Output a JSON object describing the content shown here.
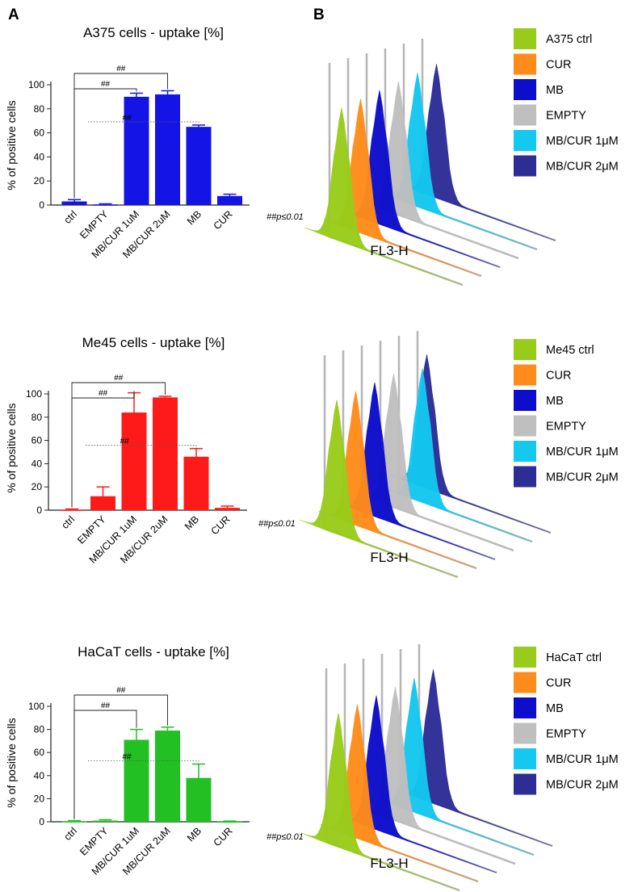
{
  "panel_labels": {
    "a": "A",
    "b": "B"
  },
  "chart_data": [
    {
      "type": "bar",
      "title": "A375 cells - uptake [%]",
      "ylabel": "% of positive cells",
      "xlabel": "",
      "ylim": [
        0,
        100
      ],
      "yticks": [
        0,
        20,
        40,
        60,
        80,
        100
      ],
      "categories": [
        "ctrl",
        "EMPTY",
        "MB/CUR 1uM",
        "MB/CUR 2uM",
        "MB",
        "CUR"
      ],
      "values": [
        3,
        0.5,
        90,
        92,
        65,
        7.5
      ],
      "errors": [
        1.5,
        0.5,
        3,
        3,
        1.5,
        1.5
      ],
      "color": "#1414e6",
      "significance": [
        {
          "from": "ctrl",
          "to": "MB/CUR 1uM",
          "label": "##"
        },
        {
          "from": "ctrl",
          "to": "MB/CUR 2uM",
          "label": "##"
        },
        {
          "from": "MB/CUR 1uM",
          "to": "MB",
          "label": "##",
          "dotted": true
        }
      ],
      "footnote": "##p≤0.01"
    },
    {
      "type": "bar",
      "title": "Me45 cells - uptake [%]",
      "ylabel": "% of positive cells",
      "xlabel": "",
      "ylim": [
        0,
        100
      ],
      "yticks": [
        0,
        20,
        40,
        60,
        80,
        100
      ],
      "categories": [
        "ctrl",
        "EMPTY",
        "MB/CUR 1uM",
        "MB/CUR 2uM",
        "MB",
        "CUR"
      ],
      "values": [
        0.5,
        12,
        84,
        97,
        46,
        2
      ],
      "errors": [
        0.5,
        8,
        17,
        1,
        7,
        1.5
      ],
      "color": "#ff1a1a",
      "significance": [
        {
          "from": "ctrl",
          "to": "MB/CUR 1uM",
          "label": "##"
        },
        {
          "from": "ctrl",
          "to": "MB/CUR 2uM",
          "label": "##"
        },
        {
          "from": "MB/CUR 1uM",
          "to": "MB",
          "label": "##",
          "dotted": true
        }
      ],
      "footnote": "##p≤0.01"
    },
    {
      "type": "bar",
      "title": "HaCaT cells - uptake [%]",
      "ylabel": "% of positive cells",
      "xlabel": "",
      "ylim": [
        0,
        100
      ],
      "yticks": [
        0,
        20,
        40,
        60,
        80,
        100
      ],
      "categories": [
        "ctrl",
        "EMPTY",
        "MB/CUR 1uM",
        "MB/CUR 2uM",
        "MB",
        "CUR"
      ],
      "values": [
        0.5,
        1,
        71,
        79,
        38,
        0.3
      ],
      "errors": [
        0.5,
        0.8,
        9,
        3,
        12,
        0.3
      ],
      "color": "#22c022",
      "significance": [
        {
          "from": "ctrl",
          "to": "MB/CUR 1uM",
          "label": "##"
        },
        {
          "from": "ctrl",
          "to": "MB/CUR 2uM",
          "label": "##"
        },
        {
          "from": "MB/CUR 1uM",
          "to": "MB",
          "label": "##",
          "dotted": true
        }
      ],
      "footnote": "##p≤0.01"
    }
  ],
  "histograms": [
    {
      "xlabel": "FL3-H",
      "legend": [
        {
          "label": "A375 ctrl",
          "color": "#99cc1a"
        },
        {
          "label": "CUR",
          "color": "#ff8c1a"
        },
        {
          "label": "MB",
          "color": "#0d0dcc"
        },
        {
          "label": "EMPTY",
          "color": "#bfbfbf"
        },
        {
          "label": "MB/CUR 1μM",
          "color": "#14c8f0"
        },
        {
          "label": "MB/CUR 2μM",
          "color": "#2d2d96"
        }
      ]
    },
    {
      "xlabel": "FL3-H",
      "legend": [
        {
          "label": "Me45 ctrl",
          "color": "#99cc1a"
        },
        {
          "label": "CUR",
          "color": "#ff8c1a"
        },
        {
          "label": "MB",
          "color": "#0d0dcc"
        },
        {
          "label": "EMPTY",
          "color": "#bfbfbf"
        },
        {
          "label": "MB/CUR 1μM",
          "color": "#14c8f0"
        },
        {
          "label": "MB/CUR 2μM",
          "color": "#2d2d96"
        }
      ]
    },
    {
      "xlabel": "FL3-H",
      "legend": [
        {
          "label": "HaCaT ctrl",
          "color": "#99cc1a"
        },
        {
          "label": "CUR",
          "color": "#ff8c1a"
        },
        {
          "label": "MB",
          "color": "#0d0dcc"
        },
        {
          "label": "EMPTY",
          "color": "#bfbfbf"
        },
        {
          "label": "MB/CUR 1μM",
          "color": "#14c8f0"
        },
        {
          "label": "MB/CUR 2μM",
          "color": "#2d2d96"
        }
      ]
    }
  ]
}
